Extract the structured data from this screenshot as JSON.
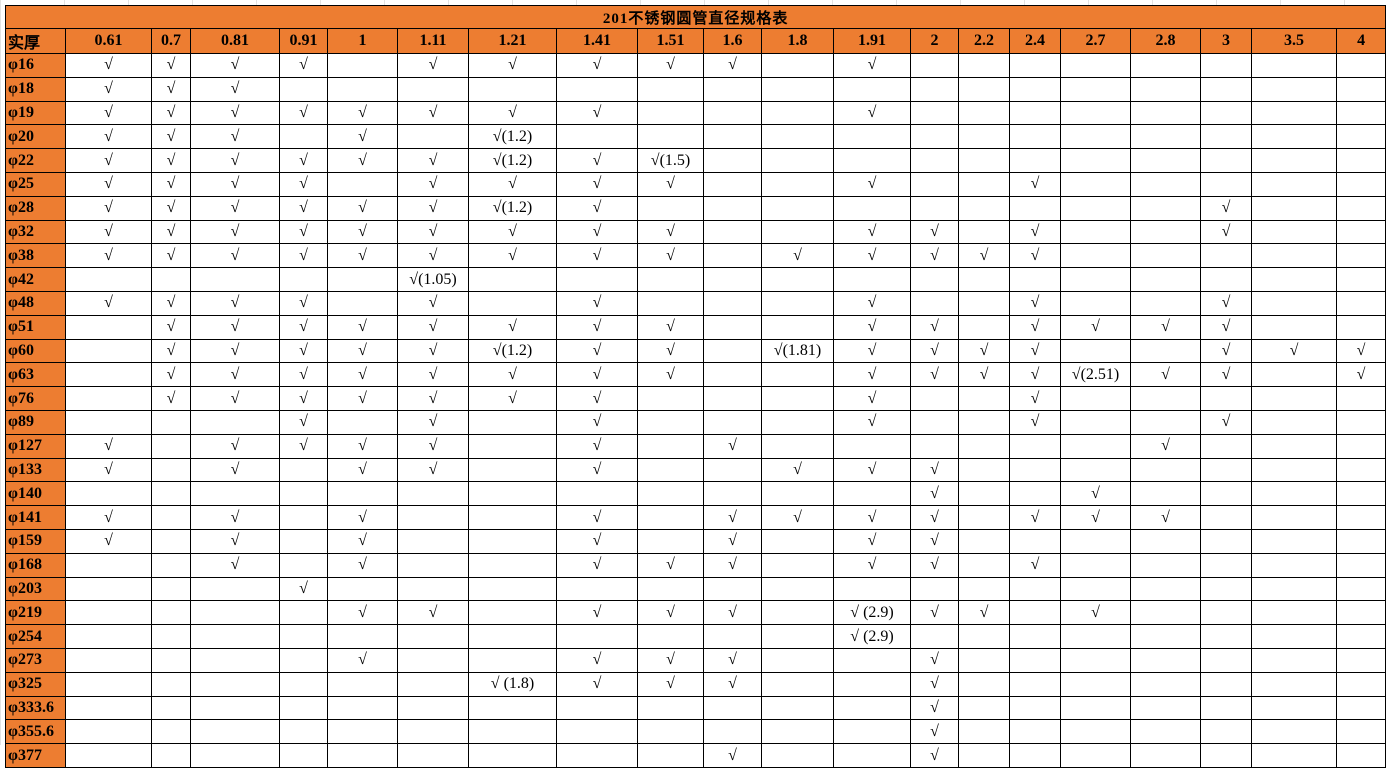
{
  "title": "201不锈钢圆管直径规格表",
  "corner_label": "实厚",
  "colors": {
    "header_bg": "#ED7D31",
    "border": "#000000"
  },
  "columns": [
    "0.61",
    "0.7",
    "0.81",
    "0.91",
    "1",
    "1.11",
    "1.21",
    "1.41",
    "1.51",
    "1.6",
    "1.8",
    "1.91",
    "2",
    "2.2",
    "2.4",
    "2.7",
    "2.8",
    "3",
    "3.5",
    "4"
  ],
  "rows": [
    {
      "label": "φ16",
      "cells": [
        "√",
        "√",
        "√",
        "√",
        "",
        "√",
        "√",
        "√",
        "√",
        "√",
        "",
        "√",
        "",
        "",
        "",
        "",
        "",
        "",
        "",
        ""
      ]
    },
    {
      "label": "φ18",
      "cells": [
        "√",
        "√",
        "√",
        "",
        "",
        "",
        "",
        "",
        "",
        "",
        "",
        "",
        "",
        "",
        "",
        "",
        "",
        "",
        "",
        ""
      ]
    },
    {
      "label": "φ19",
      "cells": [
        "√",
        "√",
        "√",
        "√",
        "√",
        "√",
        "√",
        "√",
        "",
        "",
        "",
        "√",
        "",
        "",
        "",
        "",
        "",
        "",
        "",
        ""
      ]
    },
    {
      "label": "φ20",
      "cells": [
        "√",
        "√",
        "√",
        "",
        "√",
        "",
        "√(1.2)",
        "",
        "",
        "",
        "",
        "",
        "",
        "",
        "",
        "",
        "",
        "",
        "",
        ""
      ]
    },
    {
      "label": "φ22",
      "cells": [
        "√",
        "√",
        "√",
        "√",
        "√",
        "√",
        "√(1.2)",
        "√",
        "√(1.5)",
        "",
        "",
        "",
        "",
        "",
        "",
        "",
        "",
        "",
        "",
        ""
      ]
    },
    {
      "label": "φ25",
      "cells": [
        "√",
        "√",
        "√",
        "√",
        "",
        "√",
        "√",
        "√",
        "√",
        "",
        "",
        "√",
        "",
        "",
        "√",
        "",
        "",
        "",
        "",
        ""
      ]
    },
    {
      "label": "φ28",
      "cells": [
        "√",
        "√",
        "√",
        "√",
        "√",
        "√",
        "√(1.2)",
        "√",
        "",
        "",
        "",
        "",
        "",
        "",
        "",
        "",
        "",
        "√",
        "",
        ""
      ]
    },
    {
      "label": "φ32",
      "cells": [
        "√",
        "√",
        "√",
        "√",
        "√",
        "√",
        "√",
        "√",
        "√",
        "",
        "",
        "√",
        "√",
        "",
        "√",
        "",
        "",
        "√",
        "",
        ""
      ]
    },
    {
      "label": "φ38",
      "cells": [
        "√",
        "√",
        "√",
        "√",
        "√",
        "√",
        "√",
        "√",
        "√",
        "",
        "√",
        "√",
        "√",
        "√",
        "√",
        "",
        "",
        "",
        "",
        ""
      ]
    },
    {
      "label": "φ42",
      "cells": [
        "",
        "",
        "",
        "",
        "",
        "√(1.05)",
        "",
        "",
        "",
        "",
        "",
        "",
        "",
        "",
        "",
        "",
        "",
        "",
        "",
        ""
      ]
    },
    {
      "label": "φ48",
      "cells": [
        "√",
        "√",
        "√",
        "√",
        "",
        "√",
        "",
        "√",
        "",
        "",
        "",
        "√",
        "",
        "",
        "√",
        "",
        "",
        "√",
        "",
        ""
      ]
    },
    {
      "label": "φ51",
      "cells": [
        "",
        "√",
        "√",
        "√",
        "√",
        "√",
        "√",
        "√",
        "√",
        "",
        "",
        "√",
        "√",
        "",
        "√",
        "√",
        "√",
        "√",
        "",
        ""
      ]
    },
    {
      "label": "φ60",
      "cells": [
        "",
        "√",
        "√",
        "√",
        "√",
        "√",
        "√(1.2)",
        "√",
        "√",
        "",
        "√(1.81)",
        "√",
        "√",
        "√",
        "√",
        "",
        "",
        "√",
        "√",
        "√"
      ]
    },
    {
      "label": "φ63",
      "cells": [
        "",
        "√",
        "√",
        "√",
        "√",
        "√",
        "√",
        "√",
        "√",
        "",
        "",
        "√",
        "√",
        "√",
        "√",
        "√(2.51)",
        "√",
        "√",
        "",
        "√"
      ]
    },
    {
      "label": "φ76",
      "cells": [
        "",
        "√",
        "√",
        "√",
        "√",
        "√",
        "√",
        "√",
        "",
        "",
        "",
        "√",
        "",
        "",
        "√",
        "",
        "",
        "",
        "",
        ""
      ]
    },
    {
      "label": "φ89",
      "cells": [
        "",
        "",
        "",
        "√",
        "",
        "√",
        "",
        "√",
        "",
        "",
        "",
        "√",
        "",
        "",
        "√",
        "",
        "",
        "√",
        "",
        ""
      ]
    },
    {
      "label": "φ127",
      "cells": [
        "√",
        "",
        "√",
        "√",
        "√",
        "√",
        "",
        "√",
        "",
        "√",
        "",
        "",
        "",
        "",
        "",
        "",
        "√",
        "",
        "",
        ""
      ]
    },
    {
      "label": "φ133",
      "cells": [
        "√",
        "",
        "√",
        "",
        "√",
        "√",
        "",
        "√",
        "",
        "",
        "√",
        "√",
        "√",
        "",
        "",
        "",
        "",
        "",
        "",
        ""
      ]
    },
    {
      "label": "φ140",
      "cells": [
        "",
        "",
        "",
        "",
        "",
        "",
        "",
        "",
        "",
        "",
        "",
        "",
        "√",
        "",
        "",
        "√",
        "",
        "",
        "",
        ""
      ]
    },
    {
      "label": "φ141",
      "cells": [
        "√",
        "",
        "√",
        "",
        "√",
        "",
        "",
        "√",
        "",
        "√",
        "√",
        "√",
        "√",
        "",
        "√",
        "√",
        "√",
        "",
        "",
        ""
      ]
    },
    {
      "label": "φ159",
      "cells": [
        "√",
        "",
        "√",
        "",
        "√",
        "",
        "",
        "√",
        "",
        "√",
        "",
        "√",
        "√",
        "",
        "",
        "",
        "",
        "",
        "",
        ""
      ]
    },
    {
      "label": "φ168",
      "cells": [
        "",
        "",
        "√",
        "",
        "√",
        "",
        "",
        "√",
        "√",
        "√",
        "",
        "√",
        "√",
        "",
        "√",
        "",
        "",
        "",
        "",
        ""
      ]
    },
    {
      "label": "φ203",
      "cells": [
        "",
        "",
        "",
        "√",
        "",
        "",
        "",
        "",
        "",
        "",
        "",
        "",
        "",
        "",
        "",
        "",
        "",
        "",
        "",
        ""
      ]
    },
    {
      "label": "φ219",
      "cells": [
        "",
        "",
        "",
        "",
        "√",
        "√",
        "",
        "√",
        "√",
        "√",
        "",
        "√ (2.9)",
        "√",
        "√",
        "",
        "√",
        "",
        "",
        "",
        ""
      ]
    },
    {
      "label": "φ254",
      "cells": [
        "",
        "",
        "",
        "",
        "",
        "",
        "",
        "",
        "",
        "",
        "",
        "√ (2.9)",
        "",
        "",
        "",
        "",
        "",
        "",
        "",
        ""
      ]
    },
    {
      "label": "φ273",
      "cells": [
        "",
        "",
        "",
        "",
        "√",
        "",
        "",
        "√",
        "√",
        "√",
        "",
        "",
        "√",
        "",
        "",
        "",
        "",
        "",
        "",
        ""
      ]
    },
    {
      "label": "φ325",
      "cells": [
        "",
        "",
        "",
        "",
        "",
        "",
        "√ (1.8)",
        "√",
        "√",
        "√",
        "",
        "",
        "√",
        "",
        "",
        "",
        "",
        "",
        "",
        ""
      ]
    },
    {
      "label": "φ333.6",
      "cells": [
        "",
        "",
        "",
        "",
        "",
        "",
        "",
        "",
        "",
        "",
        "",
        "",
        "√",
        "",
        "",
        "",
        "",
        "",
        "",
        ""
      ]
    },
    {
      "label": "φ355.6",
      "cells": [
        "",
        "",
        "",
        "",
        "",
        "",
        "",
        "",
        "",
        "",
        "",
        "",
        "√",
        "",
        "",
        "",
        "",
        "",
        "",
        ""
      ]
    },
    {
      "label": "φ377",
      "cells": [
        "",
        "",
        "",
        "",
        "",
        "",
        "",
        "",
        "",
        "√",
        "",
        "",
        "√",
        "",
        "",
        "",
        "",
        "",
        "",
        ""
      ]
    }
  ]
}
